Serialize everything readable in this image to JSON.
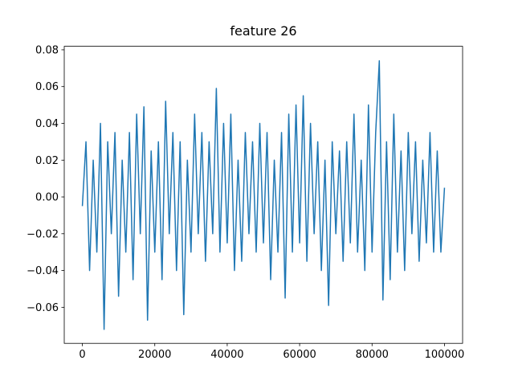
{
  "chart_data": {
    "type": "line",
    "title": "feature 26",
    "x": [
      0,
      1000,
      2000,
      3000,
      4000,
      5000,
      6000,
      7000,
      8000,
      9000,
      10000,
      11000,
      12000,
      13000,
      14000,
      15000,
      16000,
      17000,
      18000,
      19000,
      20000,
      21000,
      22000,
      23000,
      24000,
      25000,
      26000,
      27000,
      28000,
      29000,
      30000,
      31000,
      32000,
      33000,
      34000,
      35000,
      36000,
      37000,
      38000,
      39000,
      40000,
      41000,
      42000,
      43000,
      44000,
      45000,
      46000,
      47000,
      48000,
      49000,
      50000,
      51000,
      52000,
      53000,
      54000,
      55000,
      56000,
      57000,
      58000,
      59000,
      60000,
      61000,
      62000,
      63000,
      64000,
      65000,
      66000,
      67000,
      68000,
      69000,
      70000,
      71000,
      72000,
      73000,
      74000,
      75000,
      76000,
      77000,
      78000,
      79000,
      80000,
      81000,
      82000,
      83000,
      84000,
      85000,
      86000,
      87000,
      88000,
      89000,
      90000,
      91000,
      92000,
      93000,
      94000,
      95000,
      96000,
      97000,
      98000,
      99000,
      100000
    ],
    "values": [
      -0.005,
      0.03,
      -0.04,
      0.02,
      -0.03,
      0.04,
      -0.072,
      0.03,
      -0.02,
      0.035,
      -0.054,
      0.02,
      -0.03,
      0.035,
      -0.045,
      0.045,
      -0.02,
      0.049,
      -0.067,
      0.025,
      -0.03,
      0.03,
      -0.045,
      0.052,
      -0.02,
      0.035,
      -0.04,
      0.03,
      -0.064,
      0.02,
      -0.03,
      0.045,
      -0.02,
      0.035,
      -0.035,
      0.03,
      -0.02,
      0.059,
      -0.03,
      0.04,
      -0.025,
      0.045,
      -0.04,
      0.02,
      -0.035,
      0.035,
      -0.02,
      0.03,
      -0.03,
      0.04,
      -0.025,
      0.035,
      -0.045,
      0.02,
      -0.03,
      0.035,
      -0.055,
      0.045,
      -0.03,
      0.05,
      -0.025,
      0.055,
      -0.035,
      0.04,
      -0.02,
      0.03,
      -0.04,
      0.02,
      -0.059,
      0.03,
      -0.02,
      0.025,
      -0.035,
      0.03,
      -0.025,
      0.045,
      -0.03,
      0.02,
      -0.04,
      0.05,
      -0.03,
      0.035,
      0.074,
      -0.056,
      0.03,
      -0.045,
      0.045,
      -0.03,
      0.025,
      -0.04,
      0.035,
      -0.02,
      0.03,
      -0.035,
      0.02,
      -0.025,
      0.035,
      -0.03,
      0.025,
      -0.03,
      0.005
    ],
    "color": "#1f77b4",
    "xlim": [
      -5000,
      105000
    ],
    "xticks": [
      0,
      20000,
      40000,
      60000,
      80000,
      100000
    ],
    "ylim": [
      -0.0796,
      0.0819
    ],
    "yticks": [
      {
        "value": -0.06,
        "label": "−0.06"
      },
      {
        "value": -0.04,
        "label": "−0.04"
      },
      {
        "value": -0.02,
        "label": "−0.02"
      },
      {
        "value": 0,
        "label": "0.00"
      },
      0.02,
      0.04,
      0.06,
      0.08
    ],
    "grid": false
  }
}
